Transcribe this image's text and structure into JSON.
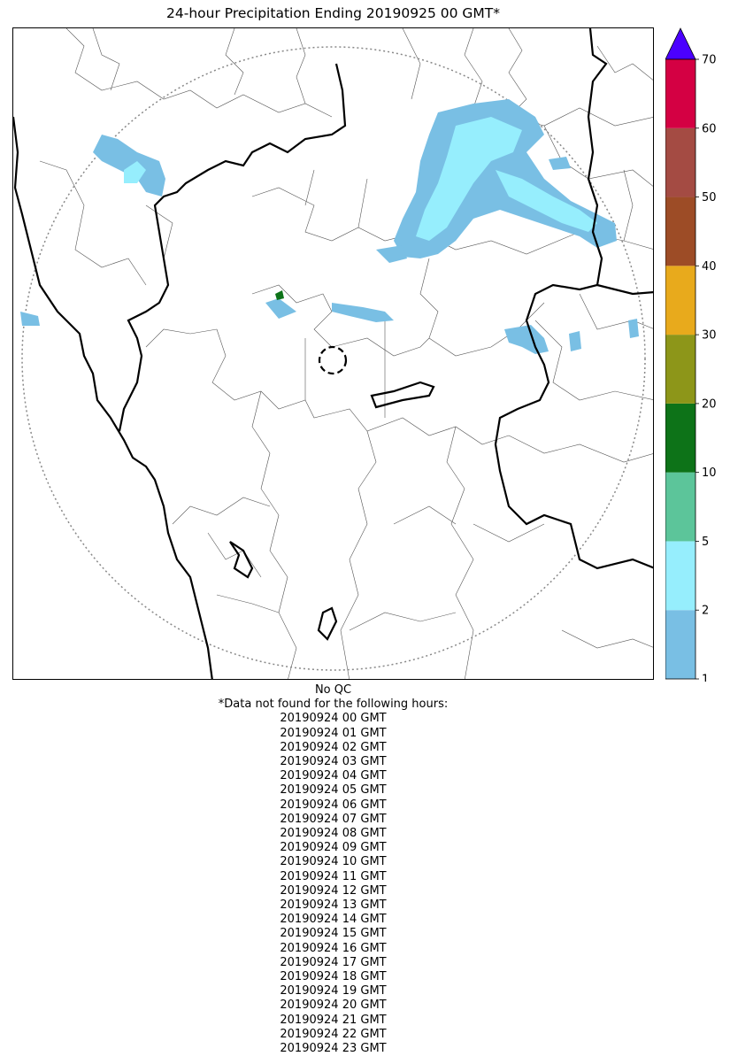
{
  "title": "24-hour Precipitation Ending 20190925 00 GMT*",
  "colorbar": {
    "ticks": [
      "1",
      "2",
      "5",
      "10",
      "20",
      "30",
      "40",
      "50",
      "60",
      "70"
    ],
    "colors": [
      "#79bfe4",
      "#96eefd",
      "#5cc59a",
      "#0d7318",
      "#8d9619",
      "#e8aa1c",
      "#9d4c26",
      "#a44b43",
      "#d40043"
    ],
    "extend_color": "#4b00ff"
  },
  "notes": {
    "qc": "No QC",
    "missing_header": "*Data not found for the following hours:",
    "missing_hours": [
      "20190924 00 GMT",
      "20190924 01 GMT",
      "20190924 02 GMT",
      "20190924 03 GMT",
      "20190924 04 GMT",
      "20190924 05 GMT",
      "20190924 06 GMT",
      "20190924 07 GMT",
      "20190924 08 GMT",
      "20190924 09 GMT",
      "20190924 10 GMT",
      "20190924 11 GMT",
      "20190924 12 GMT",
      "20190924 13 GMT",
      "20190924 14 GMT",
      "20190924 15 GMT",
      "20190924 16 GMT",
      "20190924 17 GMT",
      "20190924 18 GMT",
      "20190924 19 GMT",
      "20190924 20 GMT",
      "20190924 21 GMT",
      "20190924 22 GMT",
      "20190924 23 GMT"
    ]
  }
}
